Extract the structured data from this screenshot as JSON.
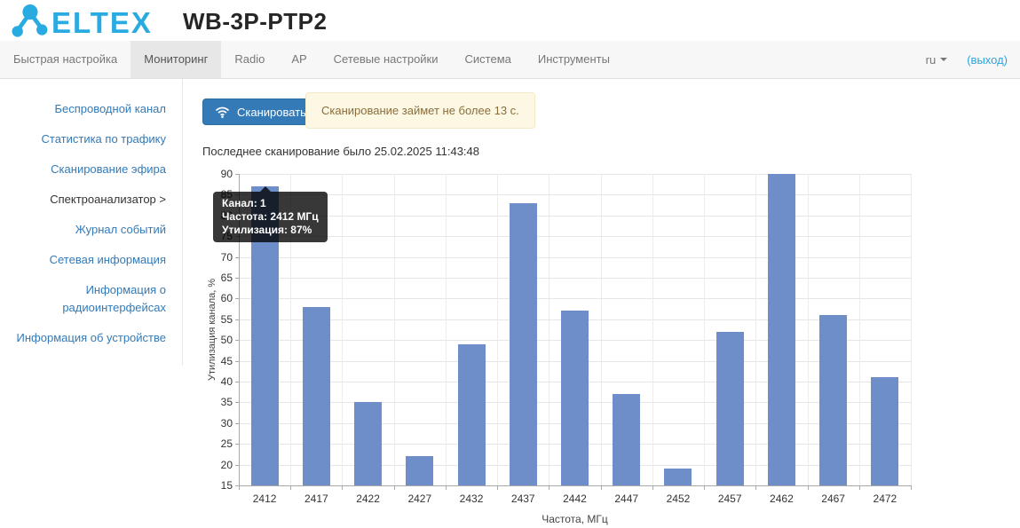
{
  "header": {
    "brand": "ELTEX",
    "title": "WB-3P-PTP2"
  },
  "navbar": {
    "items": [
      {
        "label": "Быстрая настройка"
      },
      {
        "label": "Мониторинг",
        "active": true
      },
      {
        "label": "Radio"
      },
      {
        "label": "AP"
      },
      {
        "label": "Сетевые настройки"
      },
      {
        "label": "Система"
      },
      {
        "label": "Инструменты"
      }
    ],
    "language": "ru",
    "logout_label": "(выход)"
  },
  "sidebar": {
    "items": [
      {
        "label": "Беспроводной канал"
      },
      {
        "label": "Статистика по трафику"
      },
      {
        "label": "Сканирование эфира"
      },
      {
        "label": "Спектроанализатор >",
        "active": true
      },
      {
        "label": "Журнал событий"
      },
      {
        "label": "Сетевая информация"
      },
      {
        "label": "Информация о радиоинтерфейсах"
      },
      {
        "label": "Информация об устройстве"
      }
    ]
  },
  "main": {
    "scan_button_label": "Сканировать",
    "alert_text": "Сканирование займет не более 13 с.",
    "last_scan_text": "Последнее сканирование было 25.02.2025 11:43:48",
    "tooltip": {
      "channel": "Канал: 1",
      "frequency": "Частота: 2412 МГц",
      "utilization": "Утилизация: 87%"
    }
  },
  "chart_data": {
    "type": "bar",
    "title": "",
    "xlabel": "Частота, МГц",
    "ylabel": "Утилизация канала, %",
    "categories": [
      "2412",
      "2417",
      "2422",
      "2427",
      "2432",
      "2437",
      "2442",
      "2447",
      "2452",
      "2457",
      "2462",
      "2467",
      "2472"
    ],
    "values": [
      87,
      58,
      35,
      22,
      49,
      83,
      57,
      37,
      19,
      52,
      90,
      56,
      41
    ],
    "ylim": [
      15,
      90
    ],
    "ytick_step": 5,
    "grid": true,
    "legend": false,
    "bar_color": "#6d8ec9"
  },
  "colors": {
    "accent": "#29abe2",
    "link": "#337ab7",
    "primary_button": "#337ab7",
    "bar": "#6d8ec9",
    "alert_bg": "#fcf8e3",
    "alert_text": "#8a6d3b",
    "tooltip_bg": "rgba(0,0,0,0.78)"
  }
}
